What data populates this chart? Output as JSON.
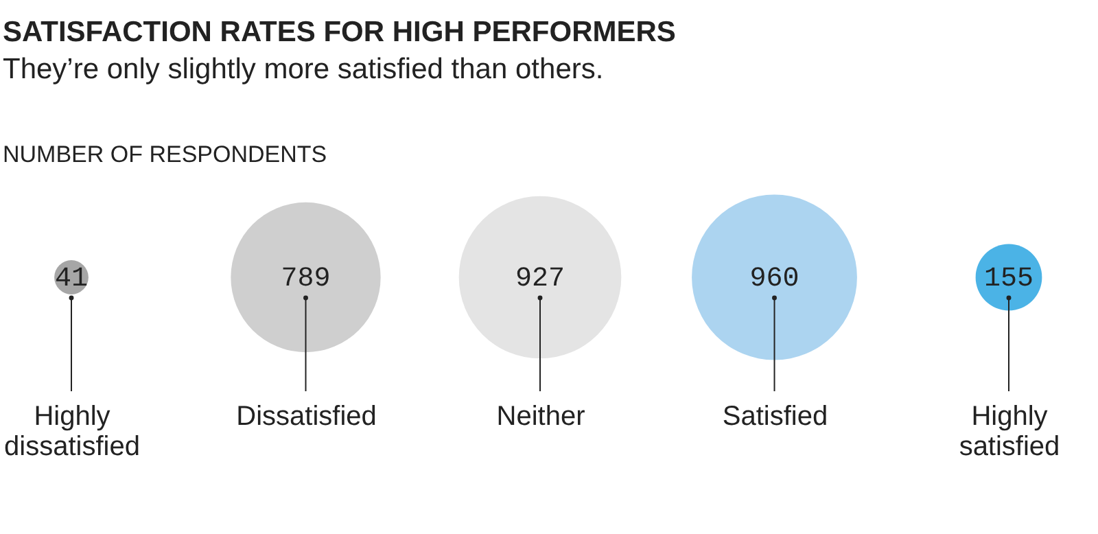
{
  "chart_data": {
    "type": "other",
    "title": "SATISFACTION RATES FOR HIGH PERFORMERS",
    "subtitle": "They’re only slightly more satisfied than others.",
    "annotations": [
      "NUMBER OF RESPONDENTS"
    ],
    "categories": [
      "Highly dissatisfied",
      "Dissatisfied",
      "Neither",
      "Satisfied",
      "Highly satisfied"
    ],
    "values": [
      41,
      789,
      927,
      960,
      155
    ],
    "colors": [
      "#a6a6a6",
      "#cfcfcf",
      "#e4e4e4",
      "#acd4f0",
      "#4bb3e6"
    ],
    "data_labels": true
  }
}
